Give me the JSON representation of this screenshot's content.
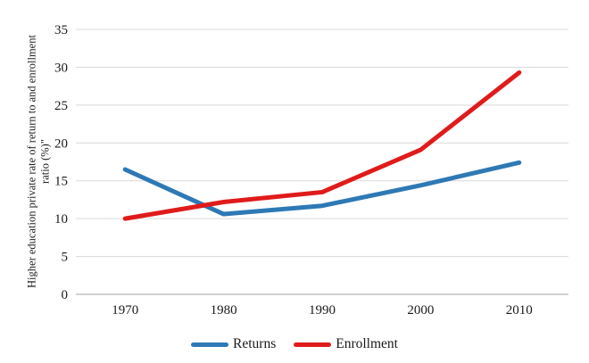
{
  "chart_data": {
    "type": "line",
    "x": [
      "1970",
      "1980",
      "1990",
      "2000",
      "2010"
    ],
    "series": [
      {
        "name": "Returns",
        "color": "#2E79B5",
        "values": [
          16.5,
          10.6,
          11.7,
          14.4,
          17.4
        ]
      },
      {
        "name": "Enrollment",
        "color": "#E01B1B",
        "values": [
          10.0,
          12.2,
          13.5,
          19.1,
          29.3
        ]
      }
    ],
    "title": "",
    "xlabel": "",
    "ylabel": "Higher education private rate of return to and enrollment ratio (%)\"",
    "ylabel_lines": [
      "Higher education private rate of return to and enrollment",
      "ratio (%)\""
    ],
    "ylim": [
      0,
      35
    ],
    "yticks": [
      0,
      5,
      10,
      15,
      20,
      25,
      30,
      35
    ],
    "grid": true,
    "legend_position": "bottom",
    "colors": {
      "gridline": "#D9D9D9",
      "axis_line": "#A6A6A6",
      "text": "#1A1A1A",
      "background": "#FFFFFF"
    }
  }
}
